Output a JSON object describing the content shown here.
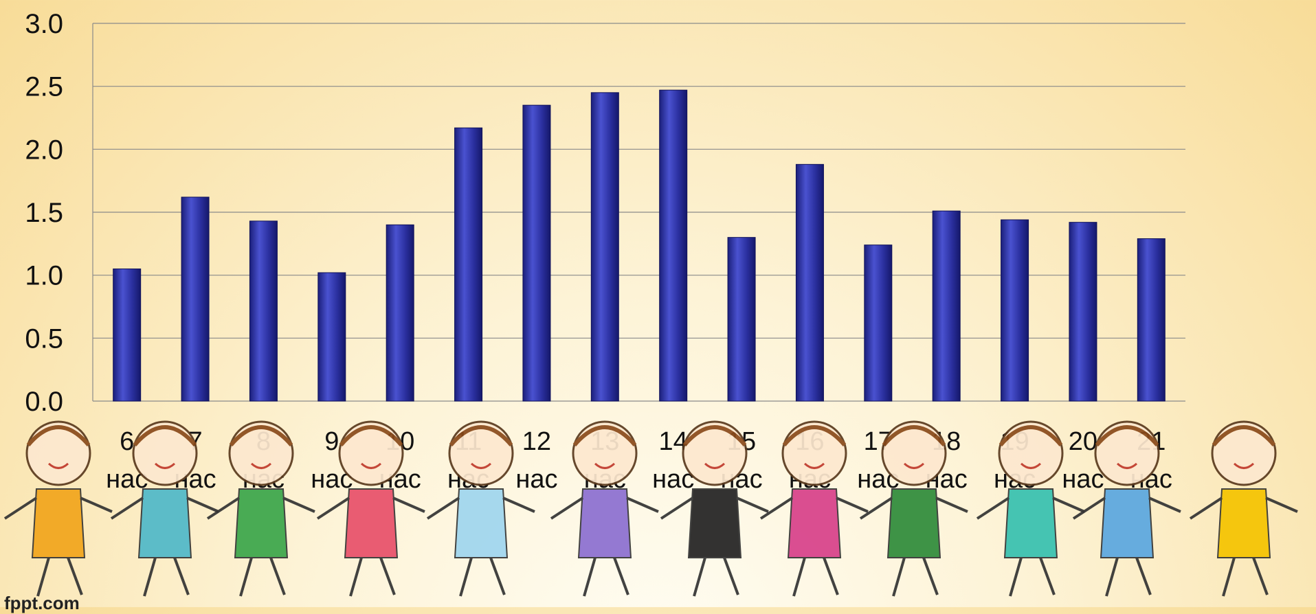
{
  "watermark": "fppt.com",
  "chart_data": {
    "type": "bar",
    "categories": [
      [
        "6",
        "нас"
      ],
      [
        "7",
        "нас"
      ],
      [
        "8",
        "нас"
      ],
      [
        "9",
        "нас"
      ],
      [
        "10",
        "нас"
      ],
      [
        "11",
        "нас"
      ],
      [
        "12",
        "нас"
      ],
      [
        "13",
        "нас"
      ],
      [
        "14",
        "нас"
      ],
      [
        "15",
        "нас"
      ],
      [
        "16",
        "нас"
      ],
      [
        "17",
        "нас"
      ],
      [
        "18",
        "нас"
      ],
      [
        "19",
        "нас"
      ],
      [
        "20",
        "нас"
      ],
      [
        "21",
        "нас"
      ]
    ],
    "values": [
      1.05,
      1.62,
      1.43,
      1.02,
      1.4,
      2.17,
      2.35,
      2.45,
      2.47,
      1.3,
      1.88,
      1.24,
      1.51,
      1.44,
      1.42,
      1.29
    ],
    "yticks": [
      "0.0",
      "0.5",
      "1.0",
      "1.5",
      "2.0",
      "2.5",
      "3.0"
    ],
    "ylim": [
      0,
      3.0
    ],
    "grid": true,
    "legend": "none",
    "colors": {
      "bar": "#2a2f9e",
      "bar_highlight": "#5a62d8",
      "grid": "#8a8a8a"
    }
  }
}
